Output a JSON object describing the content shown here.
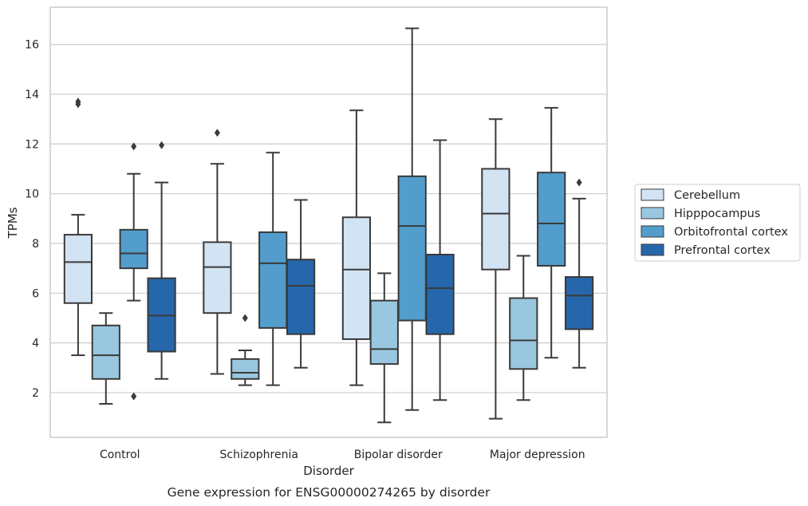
{
  "chart_data": {
    "type": "boxplot",
    "caption": "Gene expression for ENSG00000274265 by disorder",
    "xlabel": "Disorder",
    "ylabel": "TPMs",
    "ylim": [
      0.2,
      17.5
    ],
    "yticks": [
      2,
      4,
      6,
      8,
      10,
      12,
      14,
      16
    ],
    "categories": [
      "Control",
      "Schizophrenia",
      "Bipolar disorder",
      "Major depression"
    ],
    "grid": "horizontal",
    "legend_position": "right",
    "colors": {
      "Cerebellum": "#d2e3f3",
      "Hipppocampus": "#9ac7e0",
      "Orbitofrontal cortex": "#529dcc",
      "Prefrontal cortex": "#2666ab",
      "line": "#3a3a3a",
      "grid": "#cccccc"
    },
    "series": [
      {
        "name": "Cerebellum",
        "boxes": [
          {
            "min": 3.5,
            "q1": 5.6,
            "median": 7.25,
            "q3": 8.35,
            "max": 9.15,
            "outliers": [
              13.6,
              13.7
            ]
          },
          {
            "min": 2.75,
            "q1": 5.2,
            "median": 7.05,
            "q3": 8.05,
            "max": 11.2,
            "outliers": [
              12.45
            ]
          },
          {
            "min": 2.3,
            "q1": 4.15,
            "median": 6.95,
            "q3": 9.05,
            "max": 13.35,
            "outliers": []
          },
          {
            "min": 0.95,
            "q1": 6.95,
            "median": 9.2,
            "q3": 11.0,
            "max": 13.0,
            "outliers": []
          }
        ]
      },
      {
        "name": "Hipppocampus",
        "boxes": [
          {
            "min": 1.55,
            "q1": 2.55,
            "median": 3.5,
            "q3": 4.7,
            "max": 5.2,
            "outliers": []
          },
          {
            "min": 2.3,
            "q1": 2.55,
            "median": 2.8,
            "q3": 3.35,
            "max": 3.7,
            "outliers": [
              5.0
            ]
          },
          {
            "min": 0.8,
            "q1": 3.15,
            "median": 3.75,
            "q3": 5.7,
            "max": 6.8,
            "outliers": []
          },
          {
            "min": 1.7,
            "q1": 2.95,
            "median": 4.1,
            "q3": 5.8,
            "max": 7.5,
            "outliers": []
          }
        ]
      },
      {
        "name": "Orbitofrontal cortex",
        "boxes": [
          {
            "min": 5.7,
            "q1": 7.0,
            "median": 7.6,
            "q3": 8.55,
            "max": 10.8,
            "outliers": [
              11.9,
              1.85
            ]
          },
          {
            "min": 2.3,
            "q1": 4.6,
            "median": 7.2,
            "q3": 8.45,
            "max": 11.65,
            "outliers": []
          },
          {
            "min": 1.3,
            "q1": 4.9,
            "median": 8.7,
            "q3": 10.7,
            "max": 16.65,
            "outliers": []
          },
          {
            "min": 3.4,
            "q1": 7.1,
            "median": 8.8,
            "q3": 10.85,
            "max": 13.45,
            "outliers": []
          }
        ]
      },
      {
        "name": "Prefrontal cortex",
        "boxes": [
          {
            "min": 2.55,
            "q1": 3.65,
            "median": 5.1,
            "q3": 6.6,
            "max": 10.45,
            "outliers": [
              11.95
            ]
          },
          {
            "min": 3.0,
            "q1": 4.35,
            "median": 6.3,
            "q3": 7.35,
            "max": 9.75,
            "outliers": []
          },
          {
            "min": 1.7,
            "q1": 4.35,
            "median": 6.2,
            "q3": 7.55,
            "max": 12.15,
            "outliers": []
          },
          {
            "min": 3.0,
            "q1": 4.55,
            "median": 5.9,
            "q3": 6.65,
            "max": 9.8,
            "outliers": [
              10.45
            ]
          }
        ]
      }
    ]
  }
}
